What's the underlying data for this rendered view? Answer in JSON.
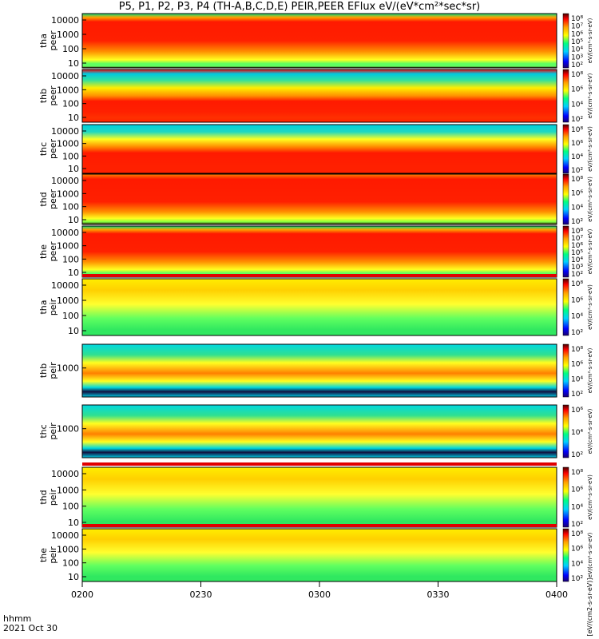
{
  "title": "P5, P1, P2, P3, P4 (TH-A,B,C,D,E) PEIR,PEER EFlux eV/(eV*cm²*sec*sr)",
  "footer": {
    "time_label": "hhmm",
    "date_label": "2021 Oct 30"
  },
  "colors": {
    "background": "#ffffff",
    "axis": "#000000",
    "flag_red": "#e00000",
    "colormap": [
      "#1a0070",
      "#0000ff",
      "#00d0ff",
      "#00ff80",
      "#ffff00",
      "#ffa000",
      "#ff0000",
      "#4a0000"
    ]
  },
  "chart_data": {
    "type": "heatmap",
    "x_ticks": [
      "0200",
      "0230",
      "0300",
      "0330",
      "0400"
    ],
    "panels": [
      {
        "id": "tha-peer",
        "label": [
          "tha",
          "peer"
        ],
        "yticks": [
          "10000",
          "1000",
          "100",
          "10"
        ],
        "cbar": [
          "10⁸",
          "10⁷",
          "10⁶",
          "10⁵",
          "10⁴",
          "10³",
          "10²"
        ],
        "cbar_label": "eV/(cm²-s-sr-eV)"
      },
      {
        "id": "thb-peer",
        "label": [
          "thb",
          "peer"
        ],
        "yticks": [
          "10000",
          "1000",
          "100",
          "10"
        ],
        "cbar": [
          "10⁸",
          "10⁶",
          "10⁴",
          "10²"
        ],
        "cbar_label": "eV/(cm²-s-sr-eV)"
      },
      {
        "id": "thc-peer",
        "label": [
          "thc",
          "peer"
        ],
        "yticks": [
          "10000",
          "1000",
          "100",
          "10"
        ],
        "cbar": [
          "10⁸",
          "10⁶",
          "10⁴",
          "10²"
        ],
        "cbar_label": "eV/(cm²-s-sr-eV)"
      },
      {
        "id": "thd-peer",
        "label": [
          "thd",
          "peer"
        ],
        "yticks": [
          "10000",
          "1000",
          "100",
          "10"
        ],
        "cbar": [
          "10⁸",
          "10⁶",
          "10⁴",
          "10²"
        ],
        "cbar_label": "eV/(cm²-s-sr-eV)"
      },
      {
        "id": "the-peer",
        "label": [
          "the",
          "peer"
        ],
        "yticks": [
          "10000",
          "1000",
          "100",
          "10"
        ],
        "cbar": [
          "10⁸",
          "10⁷",
          "10⁶",
          "10⁵",
          "10⁴",
          "10³",
          "10²"
        ],
        "cbar_label": "eV/(cm²-s-sr-eV)"
      },
      {
        "id": "tha-peir",
        "label": [
          "tha",
          "peir"
        ],
        "yticks": [
          "10000",
          "1000",
          "100",
          "10"
        ],
        "cbar": [
          "10⁸",
          "10⁶",
          "10⁴",
          "10²"
        ],
        "cbar_label": "eV/(cm²-s-sr-eV)"
      },
      {
        "id": "thb-peir",
        "label": [
          "thb",
          "peir"
        ],
        "yticks": [
          "1000"
        ],
        "cbar": [
          "10⁸",
          "10⁶",
          "10⁴",
          "10²"
        ],
        "cbar_label": "eV/(cm²-s-sr-eV)"
      },
      {
        "id": "thc-peir",
        "label": [
          "thc",
          "peir"
        ],
        "yticks": [
          "1000"
        ],
        "cbar": [
          "10⁶",
          "10⁴",
          "10²"
        ],
        "cbar_label": "eV/(cm²-s-sr-eV)"
      },
      {
        "id": "thd-peir",
        "label": [
          "thd",
          "peir"
        ],
        "yticks": [
          "10000",
          "1000",
          "100",
          "10"
        ],
        "cbar": [
          "10⁸",
          "10⁶",
          "10⁴",
          "10²"
        ],
        "cbar_label": "eV/(cm²-s-sr-eV)"
      },
      {
        "id": "the-peir",
        "label": [
          "the",
          "peir"
        ],
        "yticks": [
          "10000",
          "1000",
          "100",
          "10"
        ],
        "cbar": [
          "10⁸",
          "10⁶",
          "10⁴",
          "10²"
        ],
        "cbar_label": "eV/(cm²-s-sr-eV)"
      }
    ],
    "bottom_cbar_label": "[eV/(cm2-s-sr-eV)]"
  }
}
